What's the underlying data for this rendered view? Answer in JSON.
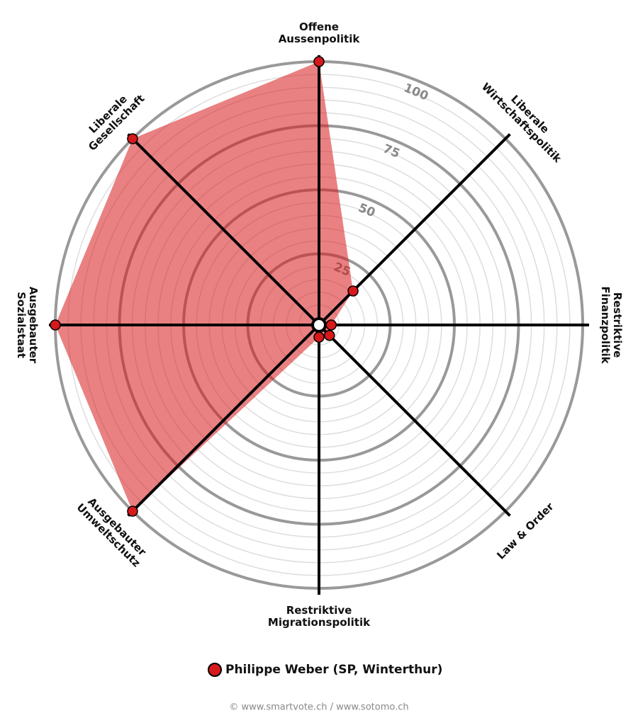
{
  "chart_data": {
    "type": "radar",
    "axes": [
      [
        "Offene",
        "Aussenpolitik"
      ],
      [
        "Liberale",
        "Wirtschaftspolitik"
      ],
      [
        "Restriktive",
        "Finanzpolitik"
      ],
      [
        "Law & Order"
      ],
      [
        "Restriktive",
        "Migrationspolitik"
      ],
      [
        "Ausgebauter",
        "Umweltschutz"
      ],
      [
        "Ausgebauter",
        "Sozialstaat"
      ],
      [
        "Liberale",
        "Gesellschaft"
      ]
    ],
    "series": [
      {
        "name": "Philippe Weber (SP, Winterthur)",
        "color": "#d7191c",
        "values": [
          100,
          16,
          2,
          3,
          2,
          100,
          100,
          100
        ]
      }
    ],
    "rlim": [
      0,
      100
    ],
    "rticks": [
      25,
      50,
      75,
      100
    ],
    "source": "© www.smartvote.ch / www.sotomo.ch"
  }
}
